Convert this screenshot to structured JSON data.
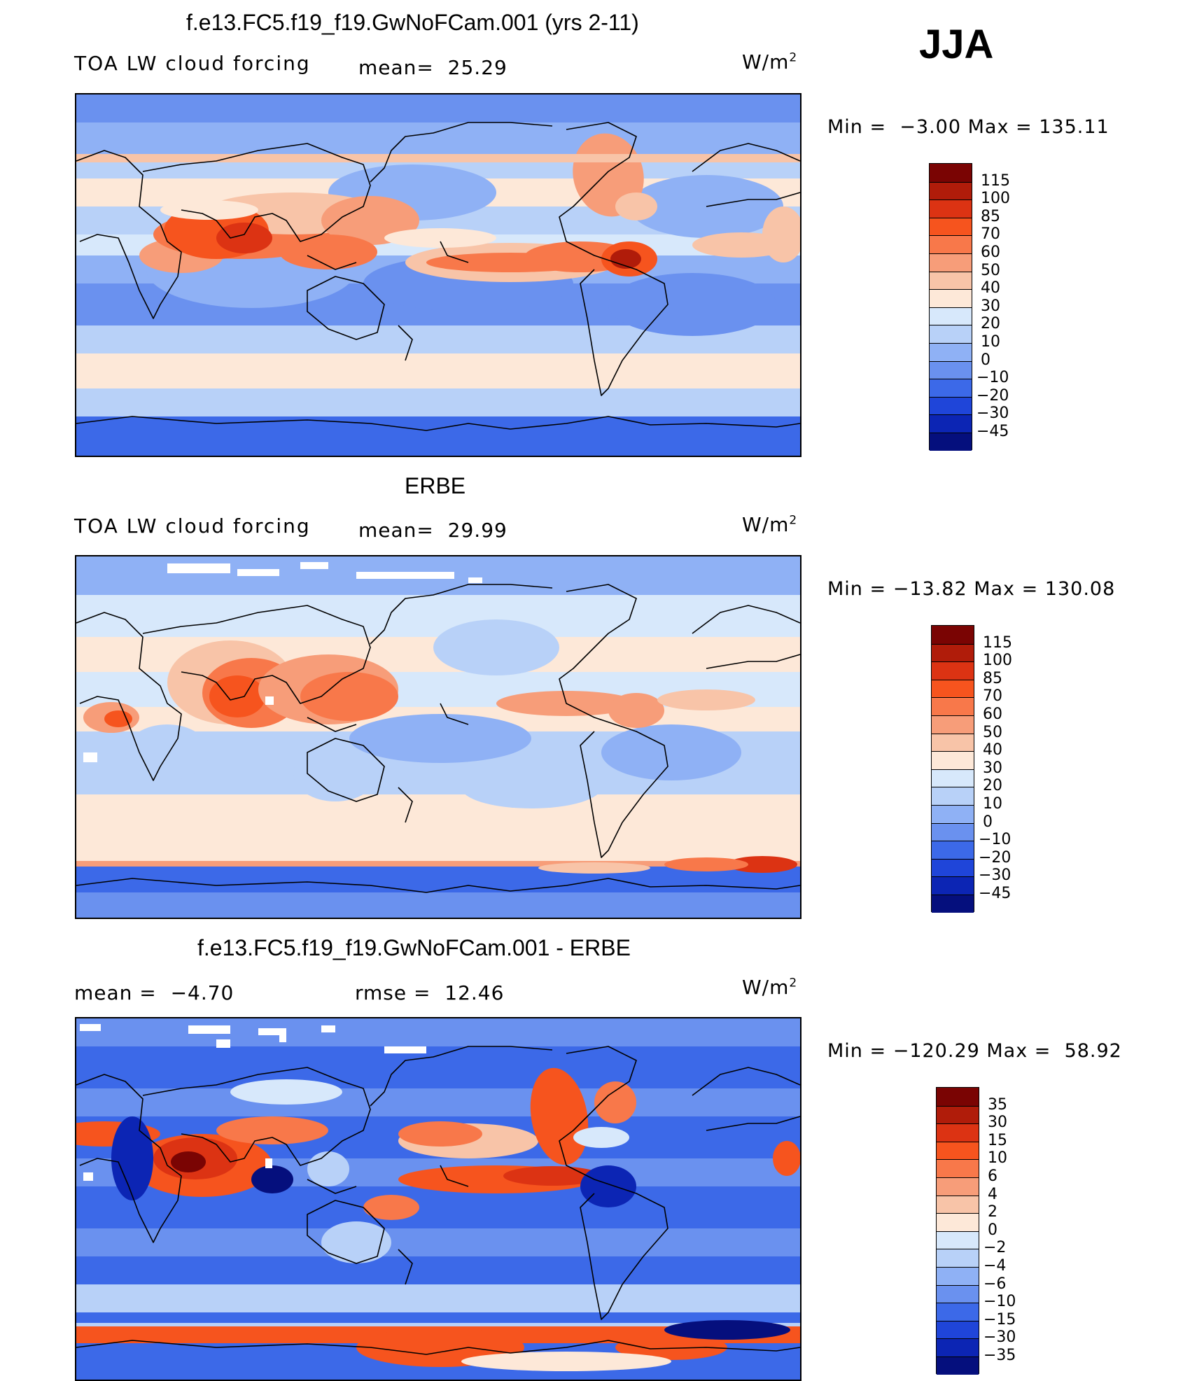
{
  "season": "JJA",
  "panels": [
    {
      "id": "model",
      "title": "f.e13.FC5.f19_f19.GwNoFCam.001 (yrs 2-11)",
      "left_label": "TOA LW cloud forcing",
      "stat1": "mean=  25.29",
      "stat2": "",
      "units": "W/m",
      "units_exp": "2",
      "minmax": "Min =  −3.00 Max = 135.11",
      "colorbar_labels": [
        "115",
        "100",
        "85",
        "70",
        "60",
        "50",
        "40",
        "30",
        "20",
        "10",
        "0",
        "−10",
        "−20",
        "−30",
        "−45"
      ],
      "colorbar_colors": [
        "#7a0403",
        "#b01c0a",
        "#dc3313",
        "#f6541e",
        "#f8784a",
        "#f79d79",
        "#f8c4a8",
        "#fde8d8",
        "#d7e8fb",
        "#b8d1f8",
        "#8fb1f5",
        "#6a91ef",
        "#3c69e8",
        "#1f45d9",
        "#0c25b4",
        "#050f7d"
      ]
    },
    {
      "id": "obs",
      "title": "ERBE",
      "left_label": "TOA LW cloud forcing",
      "stat1": "mean=  29.99",
      "stat2": "",
      "units": "W/m",
      "units_exp": "2",
      "minmax": "Min = −13.82 Max = 130.08",
      "colorbar_labels": [
        "115",
        "100",
        "85",
        "70",
        "60",
        "50",
        "40",
        "30",
        "20",
        "10",
        "0",
        "−10",
        "−20",
        "−30",
        "−45"
      ],
      "colorbar_colors": [
        "#7a0403",
        "#b01c0a",
        "#dc3313",
        "#f6541e",
        "#f8784a",
        "#f79d79",
        "#f8c4a8",
        "#fde8d8",
        "#d7e8fb",
        "#b8d1f8",
        "#8fb1f5",
        "#6a91ef",
        "#3c69e8",
        "#1f45d9",
        "#0c25b4",
        "#050f7d"
      ]
    },
    {
      "id": "diff",
      "title": "f.e13.FC5.f19_f19.GwNoFCam.001 - ERBE",
      "left_label": "",
      "stat1": "mean =  −4.70",
      "stat2": "rmse =  12.46",
      "units": "W/m",
      "units_exp": "2",
      "minmax": "Min = −120.29 Max =  58.92",
      "colorbar_labels": [
        "35",
        "30",
        "15",
        "10",
        "6",
        "4",
        "2",
        "0",
        "−2",
        "−4",
        "−6",
        "−10",
        "−15",
        "−30",
        "−35"
      ],
      "colorbar_colors": [
        "#7a0403",
        "#b01c0a",
        "#dc3313",
        "#f6541e",
        "#f8784a",
        "#f79d79",
        "#f8c4a8",
        "#fde8d8",
        "#d7e8fb",
        "#b8d1f8",
        "#8fb1f5",
        "#6a91ef",
        "#3c69e8",
        "#1f45d9",
        "#0c25b4",
        "#050f7d"
      ]
    }
  ],
  "chart_data": [
    {
      "type": "heatmap",
      "title": "f.e13.FC5.f19_f19.GwNoFCam.001 (yrs 2-11)",
      "variable": "TOA LW cloud forcing",
      "units": "W/m2",
      "mean": 25.29,
      "min": -3.0,
      "max": 135.11,
      "levels": [
        -45,
        -30,
        -20,
        -10,
        0,
        10,
        20,
        30,
        40,
        50,
        60,
        70,
        85,
        100,
        115
      ]
    },
    {
      "type": "heatmap",
      "title": "ERBE",
      "variable": "TOA LW cloud forcing",
      "units": "W/m2",
      "mean": 29.99,
      "min": -13.82,
      "max": 130.08,
      "levels": [
        -45,
        -30,
        -20,
        -10,
        0,
        10,
        20,
        30,
        40,
        50,
        60,
        70,
        85,
        100,
        115
      ]
    },
    {
      "type": "heatmap",
      "title": "f.e13.FC5.f19_f19.GwNoFCam.001 - ERBE",
      "units": "W/m2",
      "mean": -4.7,
      "rmse": 12.46,
      "min": -120.29,
      "max": 58.92,
      "levels": [
        -35,
        -30,
        -15,
        -10,
        -6,
        -4,
        -2,
        0,
        2,
        4,
        6,
        10,
        15,
        30,
        35
      ]
    }
  ]
}
